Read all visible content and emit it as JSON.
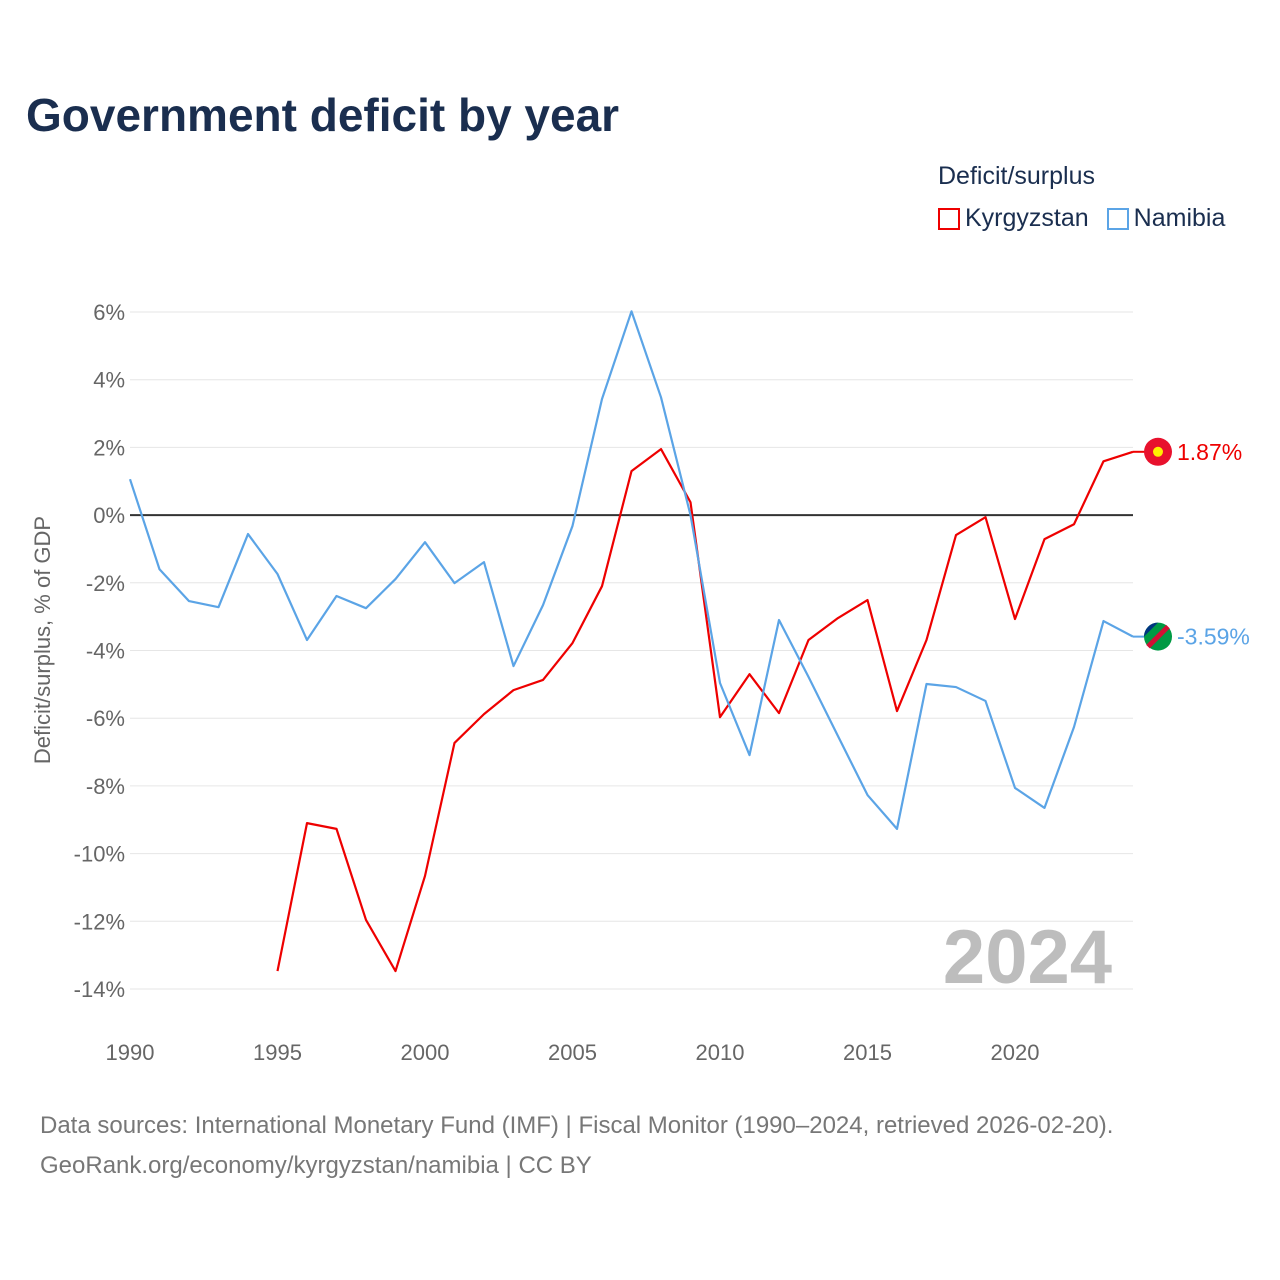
{
  "title": "Government deficit by year",
  "chart_data": {
    "type": "line",
    "title": "Government deficit by year",
    "ylabel": "Deficit/surplus, % of GDP",
    "xlabel": "",
    "legend_title": "Deficit/surplus",
    "legend_position": "top-right",
    "xlim": [
      1990,
      2024
    ],
    "ylim": [
      -14,
      6
    ],
    "x_ticks": [
      1990,
      1995,
      2000,
      2005,
      2010,
      2015,
      2020
    ],
    "x_tick_labels": [
      "1990",
      "1995",
      "2000",
      "2005",
      "2010",
      "2015",
      "2020"
    ],
    "y_ticks": [
      6,
      4,
      2,
      0,
      -2,
      -4,
      -6,
      -8,
      -10,
      -12,
      -14
    ],
    "y_tick_labels": [
      "6%",
      "4%",
      "2%",
      "0%",
      "-2%",
      "-4%",
      "-6%",
      "-8%",
      "-10%",
      "-12%",
      "-14%"
    ],
    "grid": true,
    "year_watermark": "2024",
    "series": [
      {
        "name": "Kyrgyzstan",
        "color": "#ee0000",
        "end_label": "1.87%",
        "x": [
          1995,
          1996,
          1997,
          1998,
          1999,
          2000,
          2001,
          2002,
          2003,
          2004,
          2005,
          2006,
          2007,
          2008,
          2009,
          2010,
          2011,
          2012,
          2013,
          2014,
          2015,
          2016,
          2017,
          2018,
          2019,
          2020,
          2021,
          2022,
          2023,
          2024
        ],
        "values": [
          -13.47,
          -9.1,
          -9.27,
          -11.96,
          -13.47,
          -10.66,
          -6.73,
          -5.88,
          -5.17,
          -4.87,
          -3.78,
          -2.1,
          1.3,
          1.95,
          0.38,
          -5.97,
          -4.7,
          -5.85,
          -3.69,
          -3.04,
          -2.51,
          -5.79,
          -3.69,
          -0.59,
          -0.06,
          -3.07,
          -0.71,
          -0.27,
          1.59,
          1.87
        ]
      },
      {
        "name": "Namibia",
        "color": "#5ba4e6",
        "end_label": "-3.59%",
        "x": [
          1990,
          1991,
          1992,
          1993,
          1994,
          1995,
          1996,
          1997,
          1998,
          1999,
          2000,
          2001,
          2002,
          2003,
          2004,
          2005,
          2006,
          2007,
          2008,
          2009,
          2010,
          2011,
          2012,
          2013,
          2014,
          2015,
          2016,
          2017,
          2018,
          2019,
          2020,
          2021,
          2022,
          2023,
          2024
        ],
        "values": [
          1.06,
          -1.6,
          -2.54,
          -2.72,
          -0.56,
          -1.74,
          -3.69,
          -2.39,
          -2.75,
          -1.89,
          -0.8,
          -2.01,
          -1.39,
          -4.46,
          -2.66,
          -0.32,
          3.43,
          6.02,
          3.48,
          0.0,
          -4.96,
          -7.09,
          -3.1,
          -4.78,
          -6.53,
          -8.27,
          -9.27,
          -4.99,
          -5.08,
          -5.49,
          -8.06,
          -8.65,
          -6.26,
          -3.13,
          -3.59
        ]
      }
    ]
  },
  "source_line1": "Data sources: International Monetary Fund (IMF) | Fiscal Monitor (1990–2024, retrieved 2026-02-20).",
  "source_line2": "GeoRank.org/economy/kyrgyzstan/namibia | CC BY"
}
